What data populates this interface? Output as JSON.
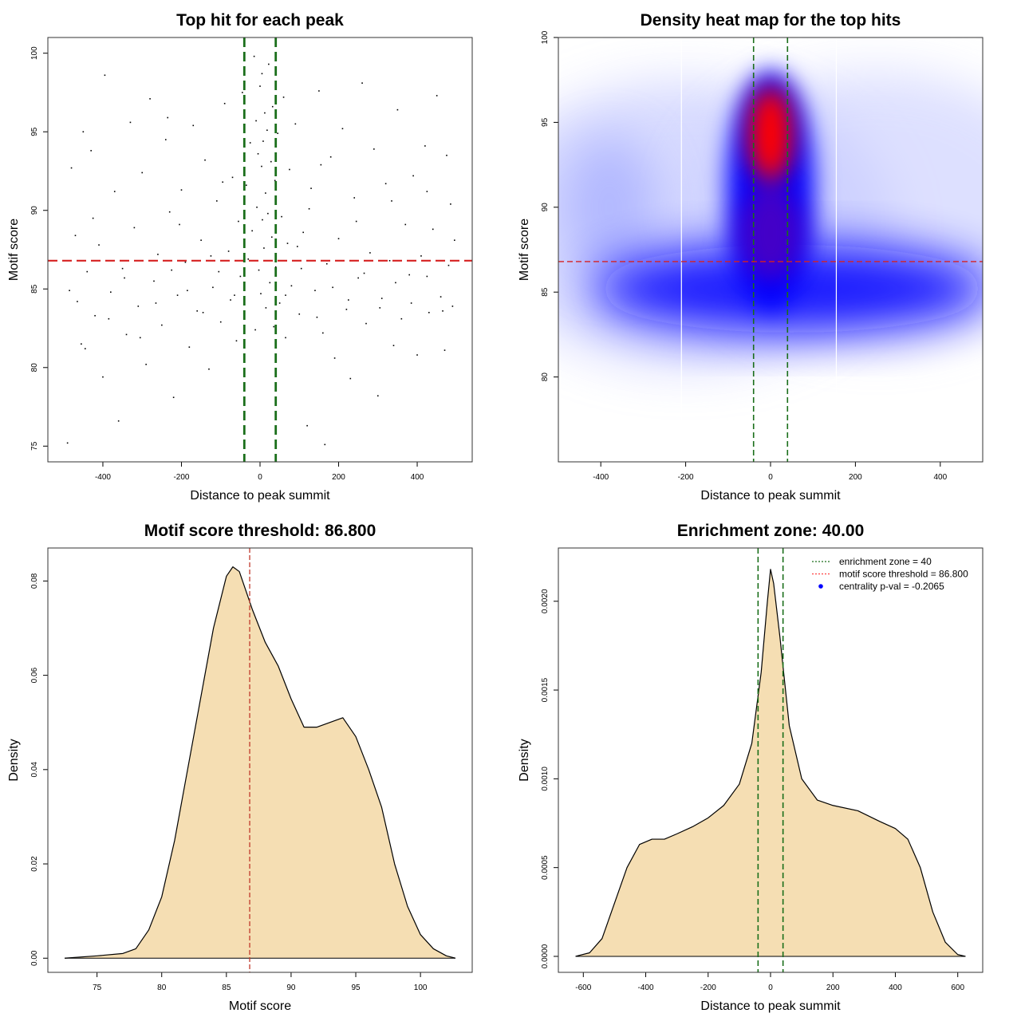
{
  "chart_data": [
    {
      "type": "scatter",
      "title": "Top hit for each peak",
      "xlabel": "Distance to peak summit",
      "ylabel": "Motif score",
      "xlim": [
        -540,
        540
      ],
      "ylim": [
        74,
        101
      ],
      "xticks": [
        -400,
        -200,
        0,
        200,
        400
      ],
      "yticks": [
        75,
        80,
        85,
        90,
        95,
        100
      ],
      "vlines": {
        "values": [
          -40,
          40
        ],
        "color": "#1a6e1a",
        "style": "dashed"
      },
      "hline": {
        "value": 86.8,
        "color": "#d62020",
        "style": "dashed"
      },
      "points": [
        [
          -490,
          75.2
        ],
        [
          -480,
          92.7
        ],
        [
          -470,
          88.4
        ],
        [
          -465,
          84.2
        ],
        [
          -455,
          81.5
        ],
        [
          -450,
          95
        ],
        [
          -440,
          86.1
        ],
        [
          -430,
          93.8
        ],
        [
          -420,
          83.3
        ],
        [
          -410,
          87.8
        ],
        [
          -400,
          79.4
        ],
        [
          -395,
          98.6
        ],
        [
          -380,
          84.8
        ],
        [
          -370,
          91.2
        ],
        [
          -360,
          76.6
        ],
        [
          -350,
          86.3
        ],
        [
          -340,
          82.1
        ],
        [
          -330,
          95.6
        ],
        [
          -320,
          88.9
        ],
        [
          -310,
          83.9
        ],
        [
          -300,
          92.4
        ],
        [
          -290,
          80.2
        ],
        [
          -280,
          97.1
        ],
        [
          -270,
          85.5
        ],
        [
          -260,
          87.2
        ],
        [
          -250,
          82.7
        ],
        [
          -240,
          94.5
        ],
        [
          -230,
          89.9
        ],
        [
          -220,
          78.1
        ],
        [
          -210,
          84.6
        ],
        [
          -200,
          91.3
        ],
        [
          -190,
          86.7
        ],
        [
          -180,
          81.3
        ],
        [
          -170,
          95.4
        ],
        [
          -160,
          83.6
        ],
        [
          -150,
          88.1
        ],
        [
          -140,
          93.2
        ],
        [
          -130,
          79.9
        ],
        [
          -120,
          85.1
        ],
        [
          -110,
          90.6
        ],
        [
          -100,
          82.9
        ],
        [
          -90,
          96.8
        ],
        [
          -80,
          87.4
        ],
        [
          -75,
          84.3
        ],
        [
          -70,
          92.1
        ],
        [
          -60,
          81.7
        ],
        [
          -55,
          89.3
        ],
        [
          -50,
          85.8
        ],
        [
          -45,
          97.5
        ],
        [
          -40,
          83.2
        ],
        [
          -35,
          91.6
        ],
        [
          -30,
          86.9
        ],
        [
          -25,
          94.3
        ],
        [
          -20,
          88.7
        ],
        [
          -15,
          99.8
        ],
        [
          -12,
          82.4
        ],
        [
          -10,
          95.7
        ],
        [
          -8,
          90.2
        ],
        [
          -5,
          93.6
        ],
        [
          -3,
          86.2
        ],
        [
          0,
          97.9
        ],
        [
          2,
          84.7
        ],
        [
          4,
          92.8
        ],
        [
          5,
          98.7
        ],
        [
          6,
          89.4
        ],
        [
          8,
          94.4
        ],
        [
          10,
          87.6
        ],
        [
          12,
          96.2
        ],
        [
          14,
          91.1
        ],
        [
          15,
          83.8
        ],
        [
          18,
          95.1
        ],
        [
          20,
          89.8
        ],
        [
          22,
          99.3
        ],
        [
          25,
          85.4
        ],
        [
          28,
          93.1
        ],
        [
          30,
          88.3
        ],
        [
          32,
          96.6
        ],
        [
          35,
          82.6
        ],
        [
          38,
          91.9
        ],
        [
          40,
          86.4
        ],
        [
          45,
          94.9
        ],
        [
          50,
          84.1
        ],
        [
          55,
          89.6
        ],
        [
          60,
          97.2
        ],
        [
          65,
          81.9
        ],
        [
          70,
          87.9
        ],
        [
          75,
          92.6
        ],
        [
          80,
          85.2
        ],
        [
          90,
          95.5
        ],
        [
          100,
          83.4
        ],
        [
          110,
          88.6
        ],
        [
          120,
          76.3
        ],
        [
          130,
          91.4
        ],
        [
          140,
          84.9
        ],
        [
          150,
          97.6
        ],
        [
          160,
          82.2
        ],
        [
          165,
          75.1
        ],
        [
          170,
          86.6
        ],
        [
          180,
          93.4
        ],
        [
          190,
          80.6
        ],
        [
          200,
          88.2
        ],
        [
          210,
          95.2
        ],
        [
          220,
          83.7
        ],
        [
          230,
          79.3
        ],
        [
          240,
          90.8
        ],
        [
          250,
          85.7
        ],
        [
          260,
          98.1
        ],
        [
          270,
          82.8
        ],
        [
          280,
          87.3
        ],
        [
          290,
          93.9
        ],
        [
          300,
          78.2
        ],
        [
          310,
          84.4
        ],
        [
          320,
          91.7
        ],
        [
          330,
          86.8
        ],
        [
          340,
          81.4
        ],
        [
          350,
          96.4
        ],
        [
          360,
          83.1
        ],
        [
          370,
          89.1
        ],
        [
          380,
          85.9
        ],
        [
          390,
          92.2
        ],
        [
          400,
          80.8
        ],
        [
          410,
          87.1
        ],
        [
          420,
          94.1
        ],
        [
          430,
          83.5
        ],
        [
          440,
          88.8
        ],
        [
          450,
          97.3
        ],
        [
          460,
          84.5
        ],
        [
          470,
          81.1
        ],
        [
          475,
          93.5
        ],
        [
          480,
          86.5
        ],
        [
          485,
          90.4
        ],
        [
          490,
          83.9
        ],
        [
          495,
          88.1
        ],
        [
          -485,
          84.9
        ],
        [
          -445,
          81.2
        ],
        [
          -425,
          89.5
        ],
        [
          -385,
          83.1
        ],
        [
          -345,
          85.7
        ],
        [
          -305,
          81.9
        ],
        [
          -265,
          84.1
        ],
        [
          -225,
          86.2
        ],
        [
          -185,
          84.9
        ],
        [
          -145,
          83.5
        ],
        [
          -105,
          86.1
        ],
        [
          -65,
          84.6
        ],
        [
          65,
          84.6
        ],
        [
          105,
          86.3
        ],
        [
          145,
          83.2
        ],
        [
          185,
          85.1
        ],
        [
          225,
          84.3
        ],
        [
          265,
          86.0
        ],
        [
          305,
          83.8
        ],
        [
          345,
          85.4
        ],
        [
          385,
          84.1
        ],
        [
          425,
          85.8
        ],
        [
          465,
          83.6
        ],
        [
          -235,
          95.9
        ],
        [
          -205,
          89.1
        ],
        [
          -95,
          91.8
        ],
        [
          -125,
          87.1
        ],
        [
          125,
          90.1
        ],
        [
          95,
          87.7
        ],
        [
          155,
          92.9
        ],
        [
          245,
          89.3
        ],
        [
          335,
          90.6
        ],
        [
          425,
          91.2
        ]
      ]
    },
    {
      "type": "heatmap",
      "title": "Density heat map for the top hits",
      "xlabel": "Distance to peak summit",
      "ylabel": "Motif score",
      "xlim": [
        -500,
        500
      ],
      "ylim": [
        75,
        100
      ],
      "xticks": [
        -400,
        -200,
        0,
        200,
        400
      ],
      "yticks": [
        80,
        85,
        90,
        95,
        100
      ],
      "colors": {
        "low": "#ffffff",
        "mid": "#0000ff",
        "high": "#ff0000"
      },
      "peak": {
        "x": 0,
        "y": 94.5
      },
      "vlines": {
        "values": [
          -40,
          40
        ],
        "color": "#1a6e1a",
        "style": "dashed"
      },
      "hline": {
        "value": 86.8,
        "color": "#d62020",
        "style": "dashed"
      }
    },
    {
      "type": "area",
      "title": "Motif score threshold: 86.800",
      "xlabel": "Motif score",
      "ylabel": "Density",
      "xlim": [
        71.2,
        104
      ],
      "ylim": [
        -0.003,
        0.087
      ],
      "xticks": [
        75,
        80,
        85,
        90,
        95,
        100
      ],
      "yticks": [
        "0.00",
        "0.02",
        "0.04",
        "0.06",
        "0.08"
      ],
      "fill": "#f5deb3",
      "vline": {
        "value": 86.8,
        "color": "#c0392b",
        "style": "dashed"
      },
      "x": [
        72.5,
        75,
        77,
        78,
        79,
        80,
        81,
        82,
        83,
        84,
        85,
        85.5,
        86,
        87,
        88,
        89,
        90,
        91,
        92,
        93,
        94,
        95,
        96,
        97,
        98,
        99,
        100,
        101,
        102,
        102.7
      ],
      "y": [
        0,
        0.0005,
        0.001,
        0.002,
        0.006,
        0.013,
        0.025,
        0.04,
        0.055,
        0.07,
        0.081,
        0.083,
        0.082,
        0.074,
        0.067,
        0.062,
        0.055,
        0.049,
        0.049,
        0.05,
        0.051,
        0.047,
        0.04,
        0.032,
        0.02,
        0.011,
        0.005,
        0.002,
        0.0005,
        0
      ]
    },
    {
      "type": "area",
      "title": "Enrichment zone: 40.00",
      "xlabel": "Distance to peak summit",
      "ylabel": "Density",
      "xlim": [
        -680,
        680
      ],
      "ylim": [
        -9e-05,
        0.0023
      ],
      "xticks": [
        -600,
        -400,
        -200,
        0,
        200,
        400,
        600
      ],
      "yticks": [
        "0.0000",
        "0.0005",
        "0.0010",
        "0.0015",
        "0.0020"
      ],
      "fill": "#f5deb3",
      "vlines": {
        "values": [
          -40,
          40
        ],
        "color": "#1a6e1a",
        "style": "dashed"
      },
      "legend": {
        "position": "top-right",
        "entries": [
          {
            "label": "enrichment zone = 40",
            "color": "#1a6e1a",
            "marker": "dotted-line"
          },
          {
            "label": "motif score threshold = 86.800",
            "color": "#ff4040",
            "marker": "dotted-line"
          },
          {
            "label": "centrality p-val = -0.2065",
            "color": "#0000ff",
            "marker": "dot"
          }
        ]
      },
      "x": [
        -625,
        -580,
        -540,
        -500,
        -460,
        -420,
        -380,
        -340,
        -300,
        -250,
        -200,
        -150,
        -100,
        -60,
        -30,
        -10,
        0,
        10,
        30,
        60,
        100,
        150,
        200,
        280,
        350,
        400,
        440,
        480,
        520,
        560,
        600,
        625
      ],
      "y": [
        0,
        2e-05,
        0.0001,
        0.0003,
        0.0005,
        0.00063,
        0.00066,
        0.00066,
        0.00069,
        0.00073,
        0.00078,
        0.00085,
        0.00097,
        0.0012,
        0.0016,
        0.002,
        0.00218,
        0.0021,
        0.0018,
        0.0013,
        0.001,
        0.00088,
        0.00085,
        0.00082,
        0.00076,
        0.00072,
        0.00066,
        0.0005,
        0.00025,
        8e-05,
        1e-05,
        0
      ]
    }
  ]
}
